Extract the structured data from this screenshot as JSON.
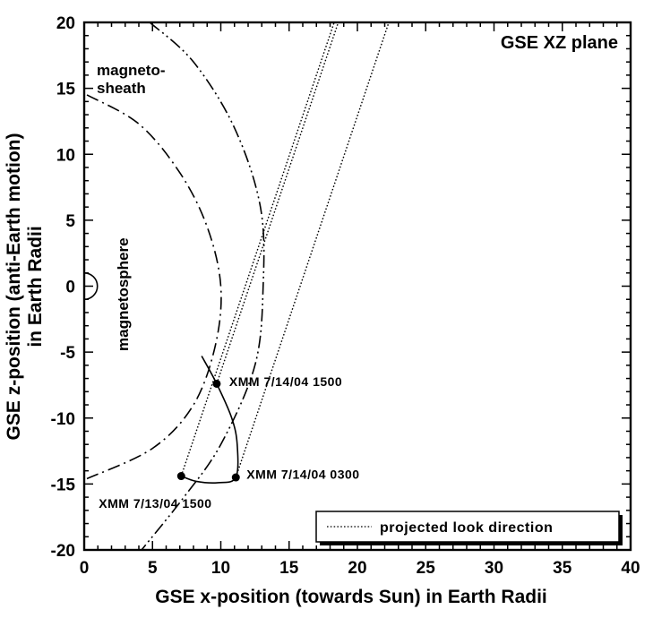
{
  "chart_data": {
    "type": "line",
    "title": "GSE XZ plane",
    "xlabel": "GSE x-position (towards Sun) in Earth Radii",
    "ylabel_lines": [
      "GSE z-position (anti-Earth motion)",
      "in Earth Radii"
    ],
    "xlim": [
      0,
      40
    ],
    "ylim": [
      -20,
      20
    ],
    "xticks": [
      0,
      5,
      10,
      15,
      20,
      25,
      30,
      35,
      40
    ],
    "yticks": [
      20,
      15,
      10,
      5,
      0,
      -5,
      -10,
      -15,
      -20
    ],
    "grid": false,
    "legend": {
      "position": "bottom-right",
      "label": "projected look direction"
    },
    "region_labels": {
      "magnetosheath_line1": "magneto-",
      "magnetosheath_line2": "sheath",
      "magnetosphere": "magnetosphere"
    },
    "series": [
      {
        "role": "magnetopause",
        "style": "dash-dot",
        "points": [
          [
            0.2,
            14.5
          ],
          [
            4,
            12.3
          ],
          [
            7,
            8.6
          ],
          [
            9,
            4.5
          ],
          [
            10,
            0
          ],
          [
            9.6,
            -4.5
          ],
          [
            8,
            -9
          ],
          [
            5,
            -12.3
          ],
          [
            0.2,
            -14.6
          ]
        ]
      },
      {
        "role": "bow-shock",
        "style": "dash-dot-dot",
        "points": [
          [
            4.8,
            20
          ],
          [
            8,
            17
          ],
          [
            11,
            12
          ],
          [
            12.9,
            6
          ],
          [
            13.1,
            0
          ],
          [
            12.5,
            -6
          ],
          [
            10,
            -12
          ],
          [
            7.3,
            -16
          ],
          [
            4.2,
            -20
          ]
        ]
      },
      {
        "name": "projected look direction",
        "style": "dotted",
        "points": [
          [
            7.1,
            -14.4
          ],
          [
            18.3,
            20
          ]
        ]
      },
      {
        "name": "projected look direction",
        "style": "dotted",
        "points": [
          [
            9.7,
            -7.4
          ],
          [
            18.6,
            20
          ]
        ]
      },
      {
        "name": "projected look direction",
        "style": "dotted",
        "points": [
          [
            11.1,
            -14.5
          ],
          [
            22.3,
            20
          ]
        ]
      },
      {
        "role": "XMM orbit",
        "style": "solid",
        "points": [
          [
            8.6,
            -5.3
          ],
          [
            9.7,
            -7.4
          ],
          [
            10.8,
            -10
          ],
          [
            11.2,
            -12
          ],
          [
            11.1,
            -14.5
          ],
          [
            9.8,
            -14.9
          ],
          [
            8.2,
            -14.8
          ],
          [
            7.1,
            -14.4
          ]
        ]
      }
    ],
    "markers": [
      {
        "x": 9.7,
        "y": -7.4,
        "label": "XMM  7/14/04  1500"
      },
      {
        "x": 11.1,
        "y": -14.5,
        "label": "XMM  7/14/04  0300"
      },
      {
        "x": 7.1,
        "y": -14.4,
        "label": "XMM  7/13/04  1500"
      }
    ],
    "earth": {
      "x": 0,
      "y": 0,
      "radius": 1
    }
  }
}
